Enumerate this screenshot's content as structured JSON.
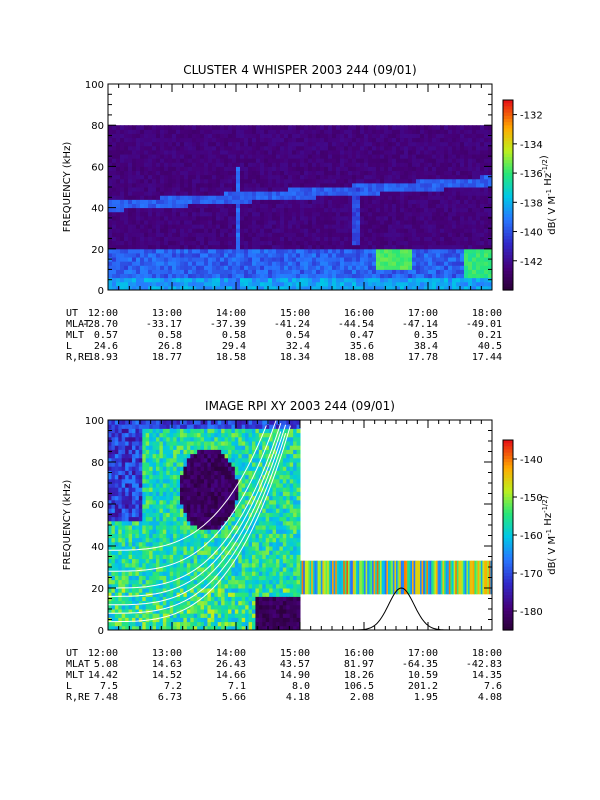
{
  "chart_data": [
    {
      "type": "heatmap",
      "title": "CLUSTER 4 WHISPER 2003 244 (09/01)",
      "ylabel": "FREQUENCY (kHz)",
      "ylim": [
        0,
        100
      ],
      "y_ticks": [
        "0",
        "20",
        "40",
        "60",
        "80",
        "100"
      ],
      "x_ticks": [
        "12:00",
        "13:00",
        "14:00",
        "15:00",
        "16:00",
        "17:00",
        "18:00"
      ],
      "colorbar": {
        "label": "dB( V M⁻¹ Hz⁻¹ᐟ²)",
        "label_parts": {
          "main": "dB( V M",
          "exp1": "-1",
          "mid": " Hz",
          "exp2": "-1/2",
          "end": ")"
        },
        "ticks": [
          "-132",
          "-134",
          "-136",
          "-138",
          "-140",
          "-142"
        ],
        "range": [
          -144,
          -131
        ]
      },
      "data_range_khz": [
        0,
        80
      ],
      "features": [
        {
          "name": "plasma line",
          "freq_start_khz": 40,
          "freq_end_khz": 52
        },
        {
          "name": "enhanced emission",
          "time": "16:30",
          "freq_khz": [
            10,
            20
          ]
        },
        {
          "name": "enhanced emission",
          "time": "17:45",
          "freq_khz": [
            5,
            20
          ]
        }
      ],
      "table": {
        "rows": [
          {
            "label": "UT",
            "values": [
              "12:00",
              "13:00",
              "14:00",
              "15:00",
              "16:00",
              "17:00",
              "18:00"
            ]
          },
          {
            "label": "MLAT",
            "values": [
              "-28.70",
              "-33.17",
              "-37.39",
              "-41.24",
              "-44.54",
              "-47.14",
              "-49.01"
            ]
          },
          {
            "label": "MLT",
            "values": [
              "0.57",
              "0.58",
              "0.58",
              "0.54",
              "0.47",
              "0.35",
              "0.21"
            ]
          },
          {
            "label": "L",
            "values": [
              "24.6",
              "26.8",
              "29.4",
              "32.4",
              "35.6",
              "38.4",
              "40.5"
            ]
          },
          {
            "label": "R,RE",
            "values": [
              "18.93",
              "18.77",
              "18.58",
              "18.34",
              "18.08",
              "17.78",
              "17.44"
            ]
          }
        ]
      }
    },
    {
      "type": "heatmap",
      "title": "IMAGE RPI XY 2003 244 (09/01)",
      "ylabel": "FREQUENCY (kHz)",
      "ylim": [
        0,
        100
      ],
      "y_ticks": [
        "0",
        "20",
        "40",
        "60",
        "80",
        "100"
      ],
      "x_ticks": [
        "12:00",
        "13:00",
        "14:00",
        "15:00",
        "16:00",
        "17:00",
        "18:00"
      ],
      "colorbar": {
        "label": "dB( V M⁻¹ Hz⁻¹ᐟ²)",
        "label_parts": {
          "main": "dB( V M",
          "exp1": "-1",
          "mid": " Hz",
          "exp2": "-1/2",
          "end": ")"
        },
        "ticks": [
          "-140",
          "-150",
          "-160",
          "-170",
          "-180"
        ],
        "range": [
          -185,
          -135
        ]
      },
      "overlay_curve_peak": {
        "time": "16:35",
        "freq_khz": 20
      },
      "table": {
        "rows": [
          {
            "label": "UT",
            "values": [
              "12:00",
              "13:00",
              "14:00",
              "15:00",
              "16:00",
              "17:00",
              "18:00"
            ]
          },
          {
            "label": "MLAT",
            "values": [
              "5.08",
              "14.63",
              "26.43",
              "43.57",
              "81.97",
              "-64.35",
              "-42.83"
            ]
          },
          {
            "label": "MLT",
            "values": [
              "14.42",
              "14.52",
              "14.66",
              "14.90",
              "18.26",
              "10.59",
              "14.35"
            ]
          },
          {
            "label": "L",
            "values": [
              "7.5",
              "7.2",
              "7.1",
              "8.0",
              "106.5",
              "201.2",
              "7.6"
            ]
          },
          {
            "label": "R,RE",
            "values": [
              "7.48",
              "6.73",
              "5.66",
              "4.18",
              "2.08",
              "1.95",
              "4.08"
            ]
          }
        ]
      }
    }
  ]
}
